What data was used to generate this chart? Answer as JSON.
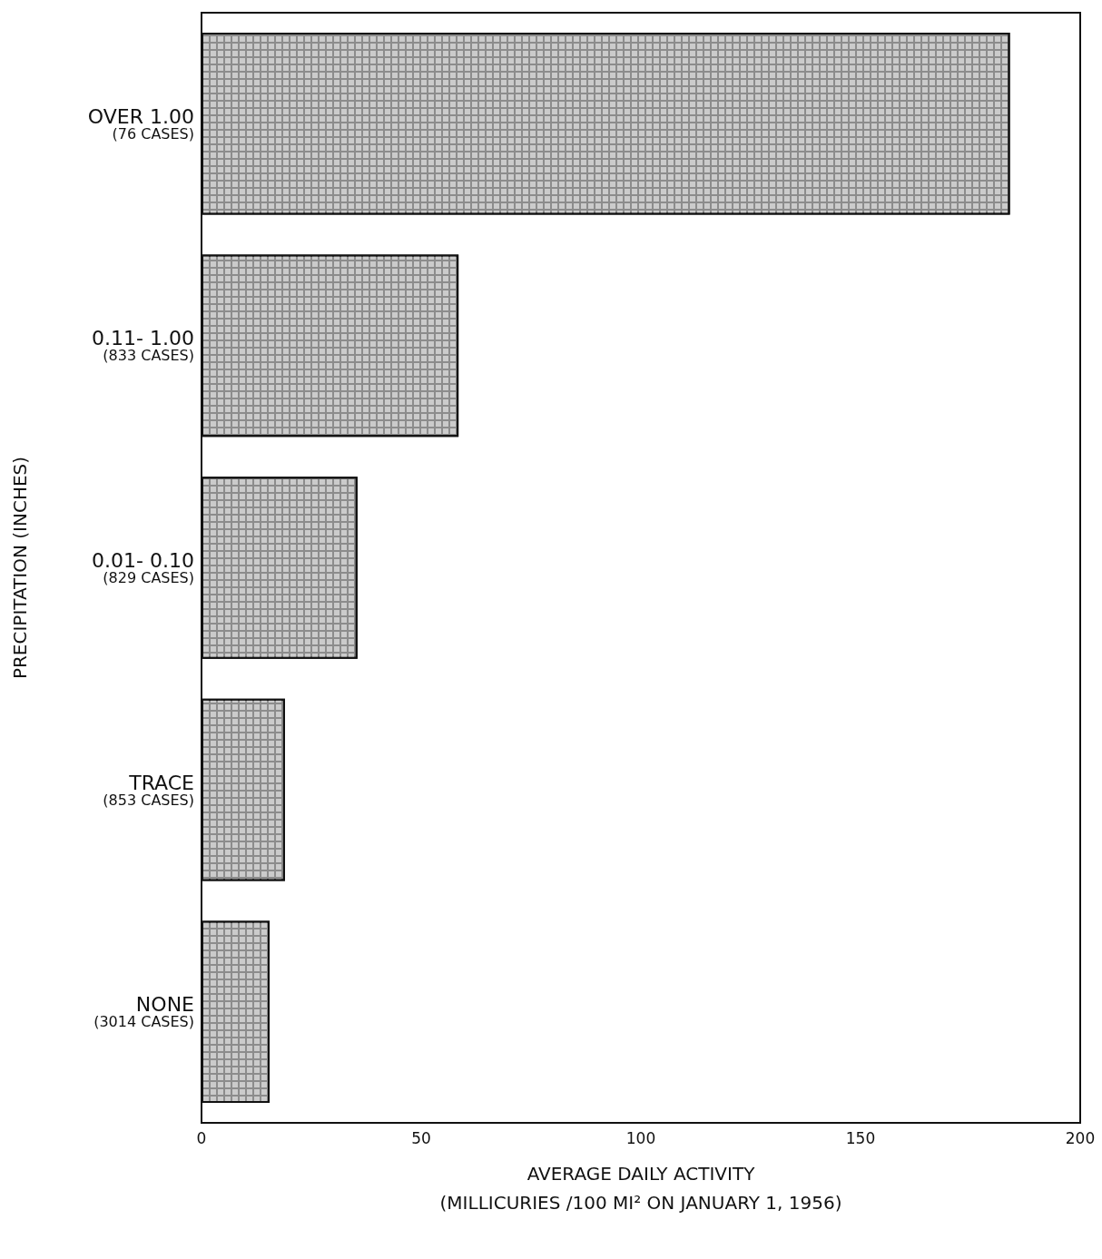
{
  "chart_data": {
    "type": "bar",
    "orientation": "horizontal",
    "categories": [
      "OVER 1.00\n(76 CASES)",
      "0.11- 1.00\n(833 CASES)",
      "0.01- 0.10\n(829 CASES)",
      "TRACE\n(853 CASES)",
      "NONE\n(3014 CASES)"
    ],
    "values": [
      184,
      58.5,
      35.5,
      19,
      15.5
    ],
    "color": "#8c8c8c",
    "xlabel": "AVERAGE DAILY ACTIVITY\n(MILLICURIES /100 MI² ON JANUARY 1, 1956)",
    "ylabel": "PRECIPITATION (INCHES)",
    "xlim": [
      0,
      200
    ],
    "xticks": [
      0,
      50,
      100,
      150,
      200
    ],
    "grid": false
  }
}
